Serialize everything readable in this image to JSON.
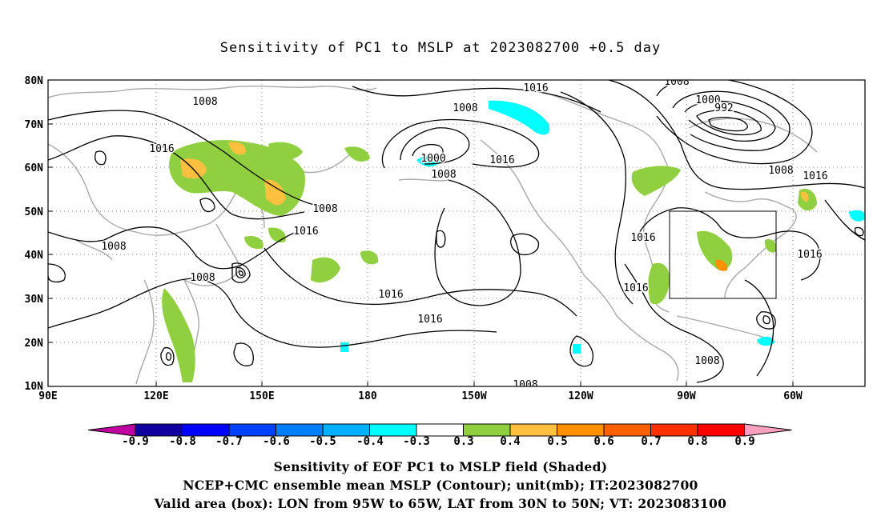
{
  "title": "Sensitivity of PC1 to MSLP at 2023082700 +0.5 day",
  "lat_labels": [
    "80N",
    "70N",
    "60N",
    "50N",
    "40N",
    "30N",
    "20N",
    "10N"
  ],
  "lon_labels": [
    "90E",
    "120E",
    "150E",
    "180",
    "150W",
    "120W",
    "90W",
    "60W"
  ],
  "contour_labels": [
    "1016",
    "1008",
    "1008",
    "1000",
    "992",
    "1008",
    "1016",
    "1016",
    "1008",
    "1000",
    "1008",
    "1016",
    "1008",
    "1016",
    "1008",
    "1016",
    "1016",
    "1016",
    "1016",
    "1008",
    "1008",
    "1008",
    "1016"
  ],
  "colorbar": {
    "labels": [
      "-0.9",
      "-0.8",
      "-0.7",
      "-0.6",
      "-0.5",
      "-0.4",
      "-0.3",
      "0.3",
      "0.4",
      "0.5",
      "0.6",
      "0.7",
      "0.8",
      "0.9"
    ],
    "colors": [
      "#1000a0",
      "#0000ff",
      "#0040ff",
      "#0080ff",
      "#00b0ff",
      "#00ffff",
      "#ffffff",
      "#90d040",
      "#ffc040",
      "#ff9000",
      "#ff6000",
      "#ff3000",
      "#ff0000"
    ],
    "low_end_color": "#c000a0",
    "high_end_color": "#ffa0c0"
  },
  "valid_box": {
    "lon_min": "95W",
    "lon_max": "65W",
    "lat_min": "30N",
    "lat_max": "50N"
  },
  "footer": {
    "line1": "Sensitivity of EOF PC1 to MSLP field (Shaded)",
    "line2": "NCEP+CMC ensemble mean MSLP (Contour); unit(mb); IT:2023082700",
    "line3": "Valid area (box): LON from 95W to 65W, LAT from 30N to 50N; VT: 2023083100"
  }
}
